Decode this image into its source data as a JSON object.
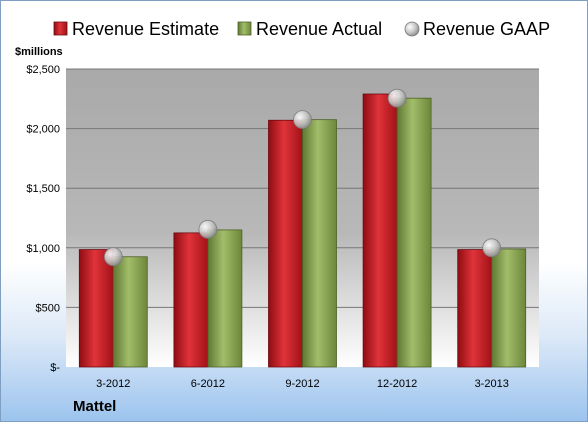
{
  "company": "Mattel",
  "chart_data": {
    "type": "bar",
    "unit_label": "$millions",
    "categories": [
      "3-2012",
      "6-2012",
      "9-2012",
      "12-2012",
      "3-2013"
    ],
    "series": [
      {
        "name": "Revenue Estimate",
        "type": "bar",
        "color": "#c0181e",
        "values": [
          985,
          1125,
          2070,
          2290,
          985
        ]
      },
      {
        "name": "Revenue Actual",
        "type": "bar",
        "color": "#7f9a48",
        "values": [
          925,
          1150,
          2075,
          2255,
          990
        ]
      },
      {
        "name": "Revenue GAAP",
        "type": "marker",
        "color": "#b0b0b0",
        "values": [
          925,
          1155,
          2075,
          2255,
          1000
        ]
      }
    ],
    "y_ticks": [
      "$-",
      "$500",
      "$1,000",
      "$1,500",
      "$2,000",
      "$2,500"
    ],
    "ylim": [
      0,
      2500
    ],
    "grid": true,
    "legend_position": "top"
  }
}
